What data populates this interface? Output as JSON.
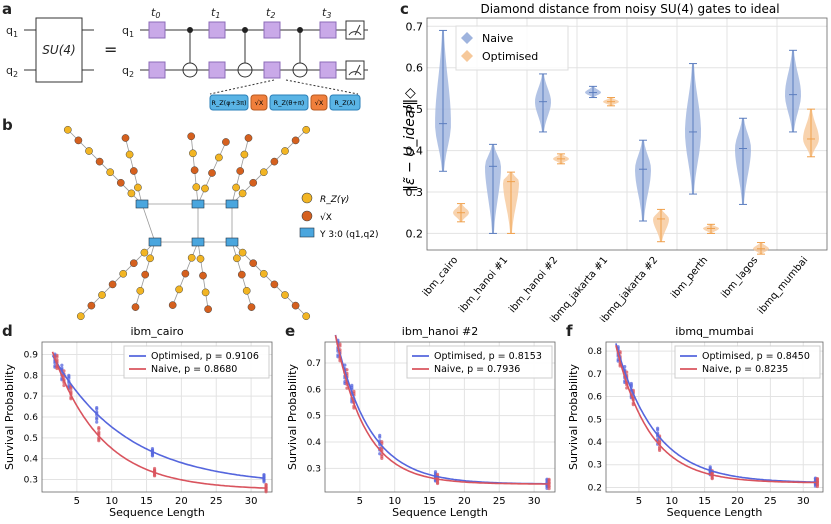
{
  "panel_labels": {
    "a": "a",
    "b": "b",
    "c": "c",
    "d": "d",
    "e": "e",
    "f": "f"
  },
  "circuit": {
    "q1": "q",
    "q1_sub": "1",
    "q2": "q",
    "q2_sub": "2",
    "gate": "SU(4)",
    "equals": "=",
    "times": [
      "t",
      "t",
      "t",
      "t"
    ],
    "time_subs": [
      "0",
      "1",
      "2",
      "3"
    ],
    "decomp": [
      "R_Z(φ+3π)",
      "√X",
      "R_Z(θ+π)",
      "√X",
      "R_Z(λ)"
    ]
  },
  "network": {
    "legend": [
      "R_Z(γ)",
      "√X",
      "Υ 3:0 (q1,q2)"
    ]
  },
  "chart_data": [
    {
      "type": "violin",
      "title": "Diamond distance from noisy SU(4) gates to ideal",
      "ylabel": "‖ε̃ − U_ideal‖◇",
      "yticks": [
        "0.2",
        "0.3",
        "0.4",
        "0.5",
        "0.6",
        "0.7"
      ],
      "ylim": [
        0.16,
        0.72
      ],
      "legend": [
        "Naive",
        "Optimised"
      ],
      "categories": [
        "ibm_cairo",
        "ibm_hanoi #1",
        "ibm_hanoi #2",
        "ibmq_jakarta #1",
        "ibmq_jakarta #2",
        "ibm_perth",
        "ibm_lagos",
        "ibmq_mumbai"
      ],
      "series": [
        {
          "name": "Naive",
          "color": "#5b7dbf",
          "mean": [
            0.465,
            0.362,
            0.518,
            0.54,
            0.355,
            0.445,
            0.405,
            0.535
          ],
          "min": [
            0.35,
            0.2,
            0.445,
            0.528,
            0.23,
            0.295,
            0.27,
            0.445
          ],
          "max": [
            0.69,
            0.415,
            0.585,
            0.555,
            0.425,
            0.61,
            0.478,
            0.642
          ]
        },
        {
          "name": "Optimised",
          "color": "#f0a04b",
          "mean": [
            0.25,
            0.325,
            0.38,
            0.518,
            0.235,
            0.212,
            0.163,
            0.428
          ],
          "min": [
            0.228,
            0.2,
            0.368,
            0.508,
            0.18,
            0.2,
            0.15,
            0.385
          ],
          "max": [
            0.272,
            0.348,
            0.392,
            0.528,
            0.258,
            0.222,
            0.178,
            0.5
          ]
        }
      ]
    },
    {
      "type": "scatter+line",
      "title": "ibm_cairo",
      "xlabel": "Sequence Length",
      "ylabel": "Survival Probability",
      "xticks": [
        "5",
        "10",
        "15",
        "20",
        "25",
        "30"
      ],
      "yticks": [
        "0.3",
        "0.4",
        "0.5",
        "0.6",
        "0.7",
        "0.8",
        "0.9"
      ],
      "xlim": [
        0,
        33
      ],
      "ylim": [
        0.24,
        0.96
      ],
      "fits": [
        {
          "name": "Optimised",
          "p": 0.9106,
          "A": 0.72,
          "B": 0.27,
          "label": "Optimised, p = 0.9106"
        },
        {
          "name": "Naive",
          "p": 0.868,
          "A": 0.82,
          "B": 0.25,
          "label": "Naive, p = 0.8680"
        }
      ],
      "lengths": [
        2,
        3,
        4,
        8,
        16,
        32
      ]
    },
    {
      "type": "scatter+line",
      "title": "ibm_hanoi #2",
      "xlabel": "Sequence Length",
      "ylabel": "Survival Probability",
      "xticks": [
        "5",
        "10",
        "15",
        "20",
        "25",
        "30"
      ],
      "yticks": [
        "0.3",
        "0.4",
        "0.5",
        "0.6",
        "0.7"
      ],
      "xlim": [
        0,
        33
      ],
      "ylim": [
        0.21,
        0.78
      ],
      "fits": [
        {
          "name": "Optimised",
          "p": 0.8153,
          "A": 0.77,
          "B": 0.24,
          "label": "Optimised, p = 0.8153"
        },
        {
          "name": "Naive",
          "p": 0.7936,
          "A": 0.8,
          "B": 0.24,
          "label": "Naive, p = 0.7936"
        }
      ],
      "lengths": [
        2,
        3,
        4,
        8,
        16,
        32
      ]
    },
    {
      "type": "scatter+line",
      "title": "ibmq_mumbai",
      "xlabel": "Sequence Length",
      "ylabel": "Survival Probability",
      "xticks": [
        "5",
        "10",
        "15",
        "20",
        "25",
        "30"
      ],
      "yticks": [
        "0.2",
        "0.3",
        "0.4",
        "0.5",
        "0.6",
        "0.7",
        "0.8"
      ],
      "xlim": [
        0,
        33
      ],
      "ylim": [
        0.18,
        0.84
      ],
      "fits": [
        {
          "name": "Optimised",
          "p": 0.845,
          "A": 0.79,
          "B": 0.22,
          "label": "Optimised, p = 0.8450"
        },
        {
          "name": "Naive",
          "p": 0.8235,
          "A": 0.81,
          "B": 0.22,
          "label": "Naive, p = 0.8235"
        }
      ],
      "lengths": [
        2,
        3,
        4,
        8,
        16,
        32
      ]
    }
  ]
}
